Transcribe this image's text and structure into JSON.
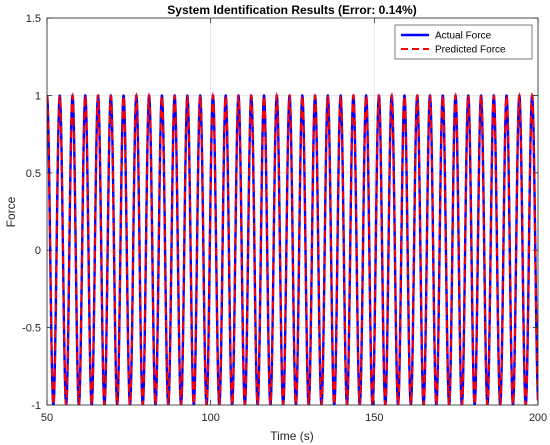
{
  "chart_data": {
    "type": "line",
    "title": "System Identification Results (Error: 0.14%)",
    "xlabel": "Time (s)",
    "ylabel": "Force",
    "xlim": [
      50,
      200
    ],
    "ylim": [
      -1,
      1.5
    ],
    "xticks": [
      50,
      100,
      150,
      200
    ],
    "yticks": [
      -1,
      -0.5,
      0,
      0.5,
      1,
      1.5
    ],
    "xtick_labels": [
      "50",
      "100",
      "150",
      "200"
    ],
    "ytick_labels": [
      "-1",
      "-0.5",
      "0",
      "0.5",
      "1",
      "1.5"
    ],
    "grid": true,
    "legend_position": "top-right",
    "signal": {
      "form": "cosine",
      "amplitude": 1,
      "period": 3.9,
      "phase_origin": 50
    },
    "series": [
      {
        "name": "Actual Force",
        "color": "#0000ff",
        "style": "solid"
      },
      {
        "name": "Predicted Force",
        "color": "#ff0000",
        "style": "dashed"
      }
    ]
  }
}
